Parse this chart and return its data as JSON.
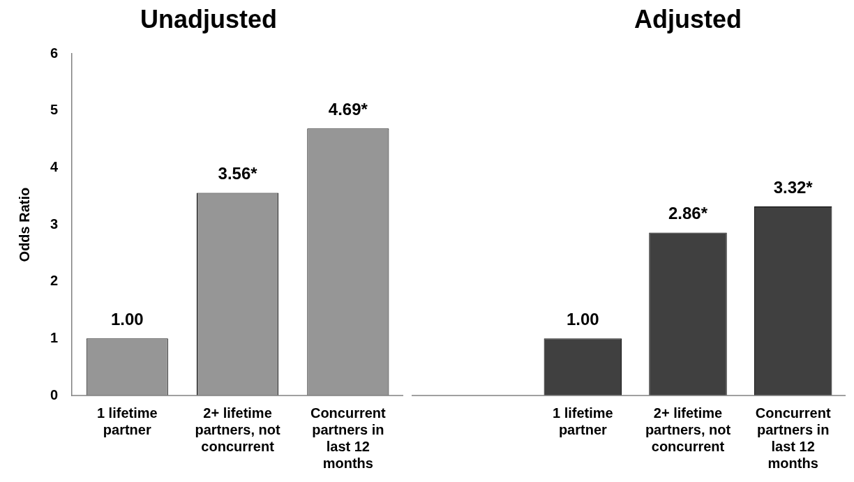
{
  "chart_data": [
    {
      "type": "bar",
      "title": "Unadjusted",
      "ylabel": "Odds Ratio",
      "categories": [
        "1 lifetime partner",
        "2+ lifetime partners, not concurrent",
        "Concurrent partners in last 12 months"
      ],
      "values": [
        1.0,
        3.56,
        4.69
      ],
      "value_labels": [
        "1.00",
        "3.56*",
        "4.69*"
      ],
      "color": "#969696",
      "ylim": [
        0,
        6
      ],
      "yticks": [
        0,
        1,
        2,
        3,
        4,
        5,
        6
      ],
      "grid": false,
      "legend": false
    },
    {
      "type": "bar",
      "title": "Adjusted",
      "categories": [
        "1 lifetime partner",
        "2+ lifetime partners, not concurrent",
        "Concurrent partners in last 12 months"
      ],
      "values": [
        1.0,
        2.86,
        3.32
      ],
      "value_labels": [
        "1.00",
        "2.86*",
        "3.32*"
      ],
      "color": "#404040",
      "ylim": [
        0,
        6
      ],
      "yticks": [
        0,
        1,
        2,
        3,
        4,
        5,
        6
      ],
      "grid": false,
      "legend": false,
      "tick_labels": "x"
    }
  ]
}
